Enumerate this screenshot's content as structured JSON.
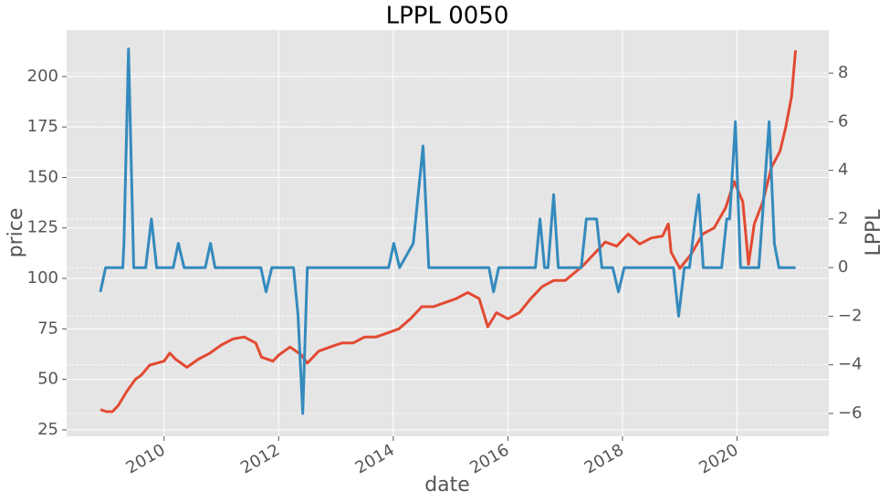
{
  "chart_data": {
    "type": "line",
    "title": "LPPL 0050",
    "xlabel": "date",
    "ylabel": "price",
    "y2label": "LPPL",
    "xlim": [
      2008.3,
      2021.6
    ],
    "xticks": [
      2010,
      2012,
      2014,
      2016,
      2018,
      2020
    ],
    "ylim": [
      21.8,
      223
    ],
    "yticks": [
      25,
      50,
      75,
      100,
      125,
      150,
      175,
      200
    ],
    "y2lim": [
      -6.94,
      9.77
    ],
    "y2ticks": [
      {
        "value": -6,
        "label": "−6"
      },
      {
        "value": -4,
        "label": "−4"
      },
      {
        "value": -2,
        "label": "−2"
      },
      0,
      2,
      4,
      6,
      8
    ],
    "grid": true,
    "series": [
      {
        "name": "price",
        "color": "#e24a33",
        "x": [
          2008.89,
          2009.0,
          2009.1,
          2009.2,
          2009.35,
          2009.5,
          2009.6,
          2009.75,
          2010.0,
          2010.1,
          2010.2,
          2010.4,
          2010.6,
          2010.8,
          2011.0,
          2011.2,
          2011.4,
          2011.6,
          2011.7,
          2011.9,
          2012.0,
          2012.2,
          2012.4,
          2012.5,
          2012.7,
          2012.9,
          2013.1,
          2013.3,
          2013.5,
          2013.7,
          2013.9,
          2014.1,
          2014.3,
          2014.5,
          2014.7,
          2014.9,
          2015.1,
          2015.3,
          2015.5,
          2015.65,
          2015.8,
          2016.0,
          2016.2,
          2016.4,
          2016.6,
          2016.8,
          2017.0,
          2017.3,
          2017.5,
          2017.7,
          2017.9,
          2018.1,
          2018.3,
          2018.5,
          2018.7,
          2018.8,
          2018.85,
          2019.0,
          2019.2,
          2019.4,
          2019.6,
          2019.8,
          2019.95,
          2020.1,
          2020.2,
          2020.3,
          2020.45,
          2020.6,
          2020.75,
          2020.85,
          2020.95,
          2021.02
        ],
        "values": [
          35,
          34,
          34,
          37,
          44,
          50,
          52,
          57,
          59,
          63,
          60,
          56,
          60,
          63,
          67,
          70,
          71,
          68,
          61,
          59,
          62,
          66,
          62,
          58,
          64,
          66,
          68,
          68,
          71,
          71,
          73,
          75,
          80,
          86,
          86,
          88,
          90,
          93,
          90,
          76,
          83,
          80,
          83,
          90,
          96,
          99,
          99,
          106,
          112,
          118,
          116,
          122,
          117,
          120,
          121,
          127,
          113,
          105,
          112,
          122,
          125,
          135,
          148,
          138,
          107,
          127,
          138,
          155,
          163,
          175,
          190,
          213
        ]
      },
      {
        "name": "LPPL",
        "color": "#348abd",
        "axis": "y2",
        "x": [
          2008.89,
          2008.98,
          2009.28,
          2009.3,
          2009.38,
          2009.47,
          2009.68,
          2009.78,
          2009.87,
          2010.16,
          2010.25,
          2010.35,
          2010.72,
          2010.81,
          2010.89,
          2011.69,
          2011.78,
          2011.88,
          2012.26,
          2012.34,
          2012.42,
          2012.5,
          2013.92,
          2014.01,
          2014.11,
          2014.35,
          2014.52,
          2014.62,
          2015.67,
          2015.75,
          2015.84,
          2016.48,
          2016.56,
          2016.64,
          2016.7,
          2016.8,
          2016.88,
          2017.28,
          2017.37,
          2017.55,
          2017.64,
          2017.83,
          2017.93,
          2018.03,
          2018.89,
          2018.98,
          2019.08,
          2019.17,
          2019.27,
          2019.33,
          2019.41,
          2019.73,
          2019.82,
          2019.87,
          2019.97,
          2020.06,
          2020.38,
          2020.56,
          2020.65,
          2020.73,
          2021.02
        ],
        "values": [
          -1,
          0,
          0,
          1,
          9,
          0,
          0,
          2,
          0,
          0,
          1,
          0,
          0,
          1,
          0,
          0,
          -1,
          0,
          0,
          -2,
          -6,
          0,
          0,
          1,
          0,
          1,
          5,
          0,
          0,
          -1,
          0,
          0,
          2,
          0,
          0,
          3,
          0,
          0,
          2,
          2,
          0,
          0,
          -1,
          0,
          0,
          -2,
          0,
          0,
          2,
          3,
          0,
          0,
          2,
          2,
          6,
          0,
          0,
          6,
          1,
          0,
          0
        ]
      }
    ]
  }
}
